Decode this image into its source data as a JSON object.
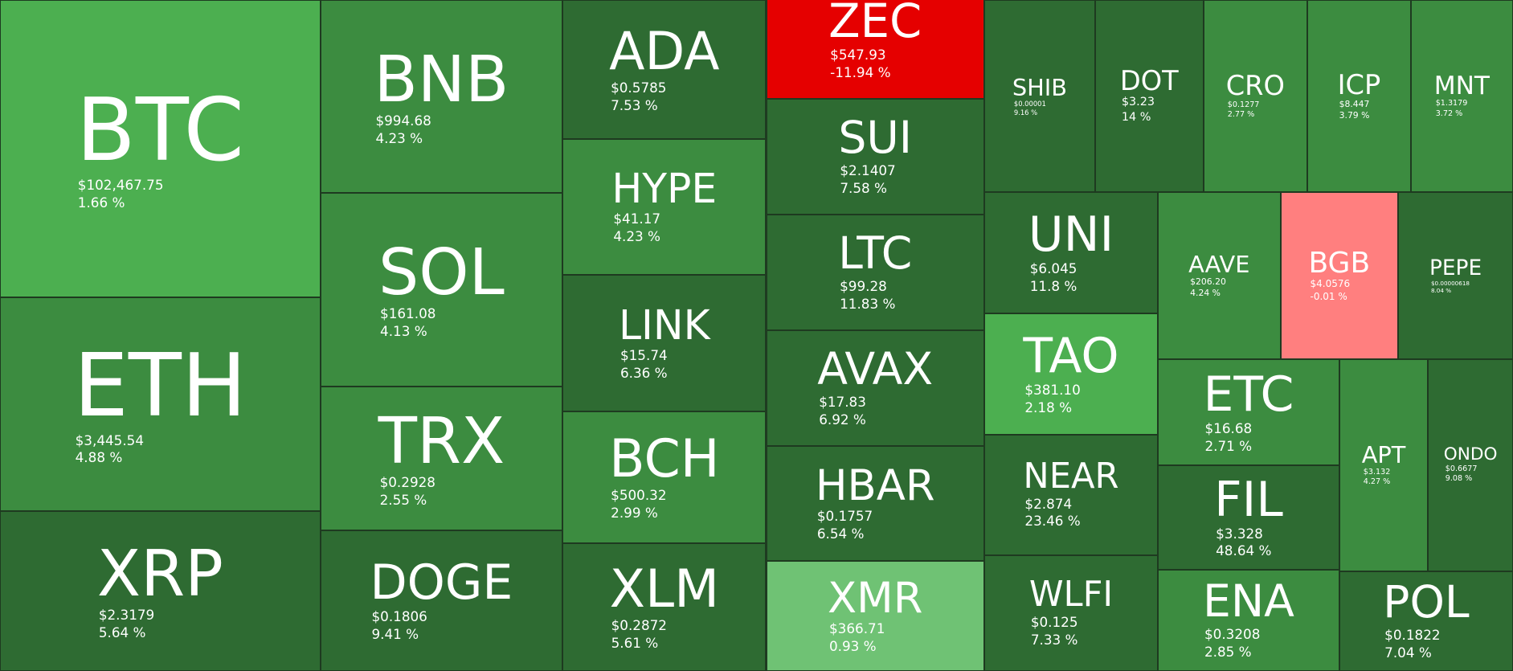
{
  "tiles": [
    {
      "symbol": "BTC",
      "price": "$102,467.75",
      "change": "1.66 %",
      "color": "#4caf50"
    },
    {
      "symbol": "ETH",
      "price": "$3,445.54",
      "change": "4.88 %",
      "color": "#3c8c40"
    },
    {
      "symbol": "XRP",
      "price": "$2.3179",
      "change": "5.64 %",
      "color": "#2e6b32"
    },
    {
      "symbol": "BNB",
      "price": "$994.68",
      "change": "4.23 %",
      "color": "#3c8c40"
    },
    {
      "symbol": "SOL",
      "price": "$161.08",
      "change": "4.13 %",
      "color": "#3c8c40"
    },
    {
      "symbol": "TRX",
      "price": "$0.2928",
      "change": "2.55 %",
      "color": "#3c8c40"
    },
    {
      "symbol": "DOGE",
      "price": "$0.1806",
      "change": "9.41 %",
      "color": "#2e6b32"
    },
    {
      "symbol": "ADA",
      "price": "$0.5785",
      "change": "7.53 %",
      "color": "#2e6b32"
    },
    {
      "symbol": "HYPE",
      "price": "$41.17",
      "change": "4.23 %",
      "color": "#3c8c40"
    },
    {
      "symbol": "LINK",
      "price": "$15.74",
      "change": "6.36 %",
      "color": "#2e6b32"
    },
    {
      "symbol": "BCH",
      "price": "$500.32",
      "change": "2.99 %",
      "color": "#3c8c40"
    },
    {
      "symbol": "XLM",
      "price": "$0.2872",
      "change": "5.61 %",
      "color": "#2e6b32"
    },
    {
      "symbol": "ZEC",
      "price": "$547.93",
      "change": "-11.94 %",
      "color": "#e50000"
    },
    {
      "symbol": "SUI",
      "price": "$2.1407",
      "change": "7.58 %",
      "color": "#2e6b32"
    },
    {
      "symbol": "LTC",
      "price": "$99.28",
      "change": "11.83 %",
      "color": "#2e6b32"
    },
    {
      "symbol": "AVAX",
      "price": "$17.83",
      "change": "6.92 %",
      "color": "#2e6b32"
    },
    {
      "symbol": "HBAR",
      "price": "$0.1757",
      "change": "6.54 %",
      "color": "#2e6b32"
    },
    {
      "symbol": "XMR",
      "price": "$366.71",
      "change": "0.93 %",
      "color": "#6fc274"
    },
    {
      "symbol": "SHIB",
      "price": "$0.00001",
      "change": "9.16 %",
      "color": "#2e6b32"
    },
    {
      "symbol": "DOT",
      "price": "$3.23",
      "change": "14 %",
      "color": "#2e6b32"
    },
    {
      "symbol": "CRO",
      "price": "$0.1277",
      "change": "2.77 %",
      "color": "#3c8c40"
    },
    {
      "symbol": "ICP",
      "price": "$8.447",
      "change": "3.79 %",
      "color": "#3c8c40"
    },
    {
      "symbol": "MNT",
      "price": "$1.3179",
      "change": "3.72 %",
      "color": "#3c8c40"
    },
    {
      "symbol": "UNI",
      "price": "$6.045",
      "change": "11.8 %",
      "color": "#2e6b32"
    },
    {
      "symbol": "TAO",
      "price": "$381.10",
      "change": "2.18 %",
      "color": "#4caf50"
    },
    {
      "symbol": "NEAR",
      "price": "$2.874",
      "change": "23.46 %",
      "color": "#2e6b32"
    },
    {
      "symbol": "WLFI",
      "price": "$0.125",
      "change": "7.33 %",
      "color": "#2e6b32"
    },
    {
      "symbol": "AAVE",
      "price": "$206.20",
      "change": "4.24 %",
      "color": "#3c8c40"
    },
    {
      "symbol": "BGB",
      "price": "$4.0576",
      "change": "-0.01 %",
      "color": "#ff7f7f"
    },
    {
      "symbol": "PEPE",
      "price": "$0.00000618",
      "change": "8.04 %",
      "color": "#2e6b32"
    },
    {
      "symbol": "ETC",
      "price": "$16.68",
      "change": "2.71 %",
      "color": "#3c8c40"
    },
    {
      "symbol": "FIL",
      "price": "$3.328",
      "change": "48.64 %",
      "color": "#2e6b32"
    },
    {
      "symbol": "ENA",
      "price": "$0.3208",
      "change": "2.85 %",
      "color": "#3c8c40"
    },
    {
      "symbol": "APT",
      "price": "$3.132",
      "change": "4.27 %",
      "color": "#3c8c40"
    },
    {
      "symbol": "ONDO",
      "price": "$0.6677",
      "change": "9.08 %",
      "color": "#2e6b32"
    },
    {
      "symbol": "POL",
      "price": "$0.1822",
      "change": "7.04 %",
      "color": "#2e6b32"
    }
  ]
}
